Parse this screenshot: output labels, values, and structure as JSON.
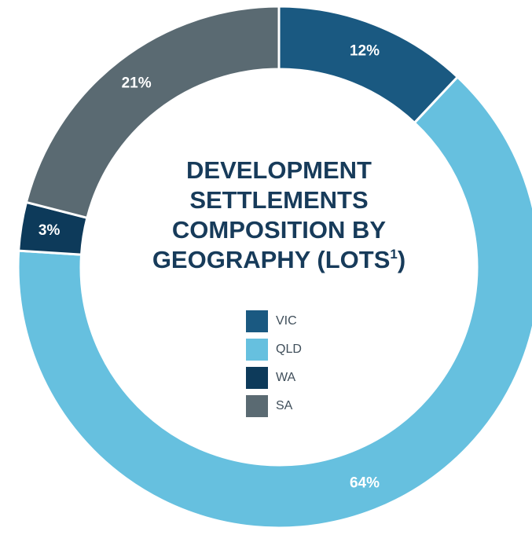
{
  "chart_data": {
    "type": "pie",
    "title_lines": [
      "DEVELOPMENT",
      "SETTLEMENTS",
      "COMPOSITION BY",
      "GEOGRAPHY (LOTS"
    ],
    "title_superscript": "1",
    "title_suffix": ")",
    "categories": [
      "VIC",
      "QLD",
      "WA",
      "SA"
    ],
    "values": [
      12,
      64,
      3,
      21
    ],
    "value_labels": [
      "12%",
      "64%",
      "3%",
      "21%"
    ],
    "colors": [
      "#1a5981",
      "#66c0df",
      "#0d3a5a",
      "#5a6a72"
    ],
    "legend_position": "center"
  }
}
